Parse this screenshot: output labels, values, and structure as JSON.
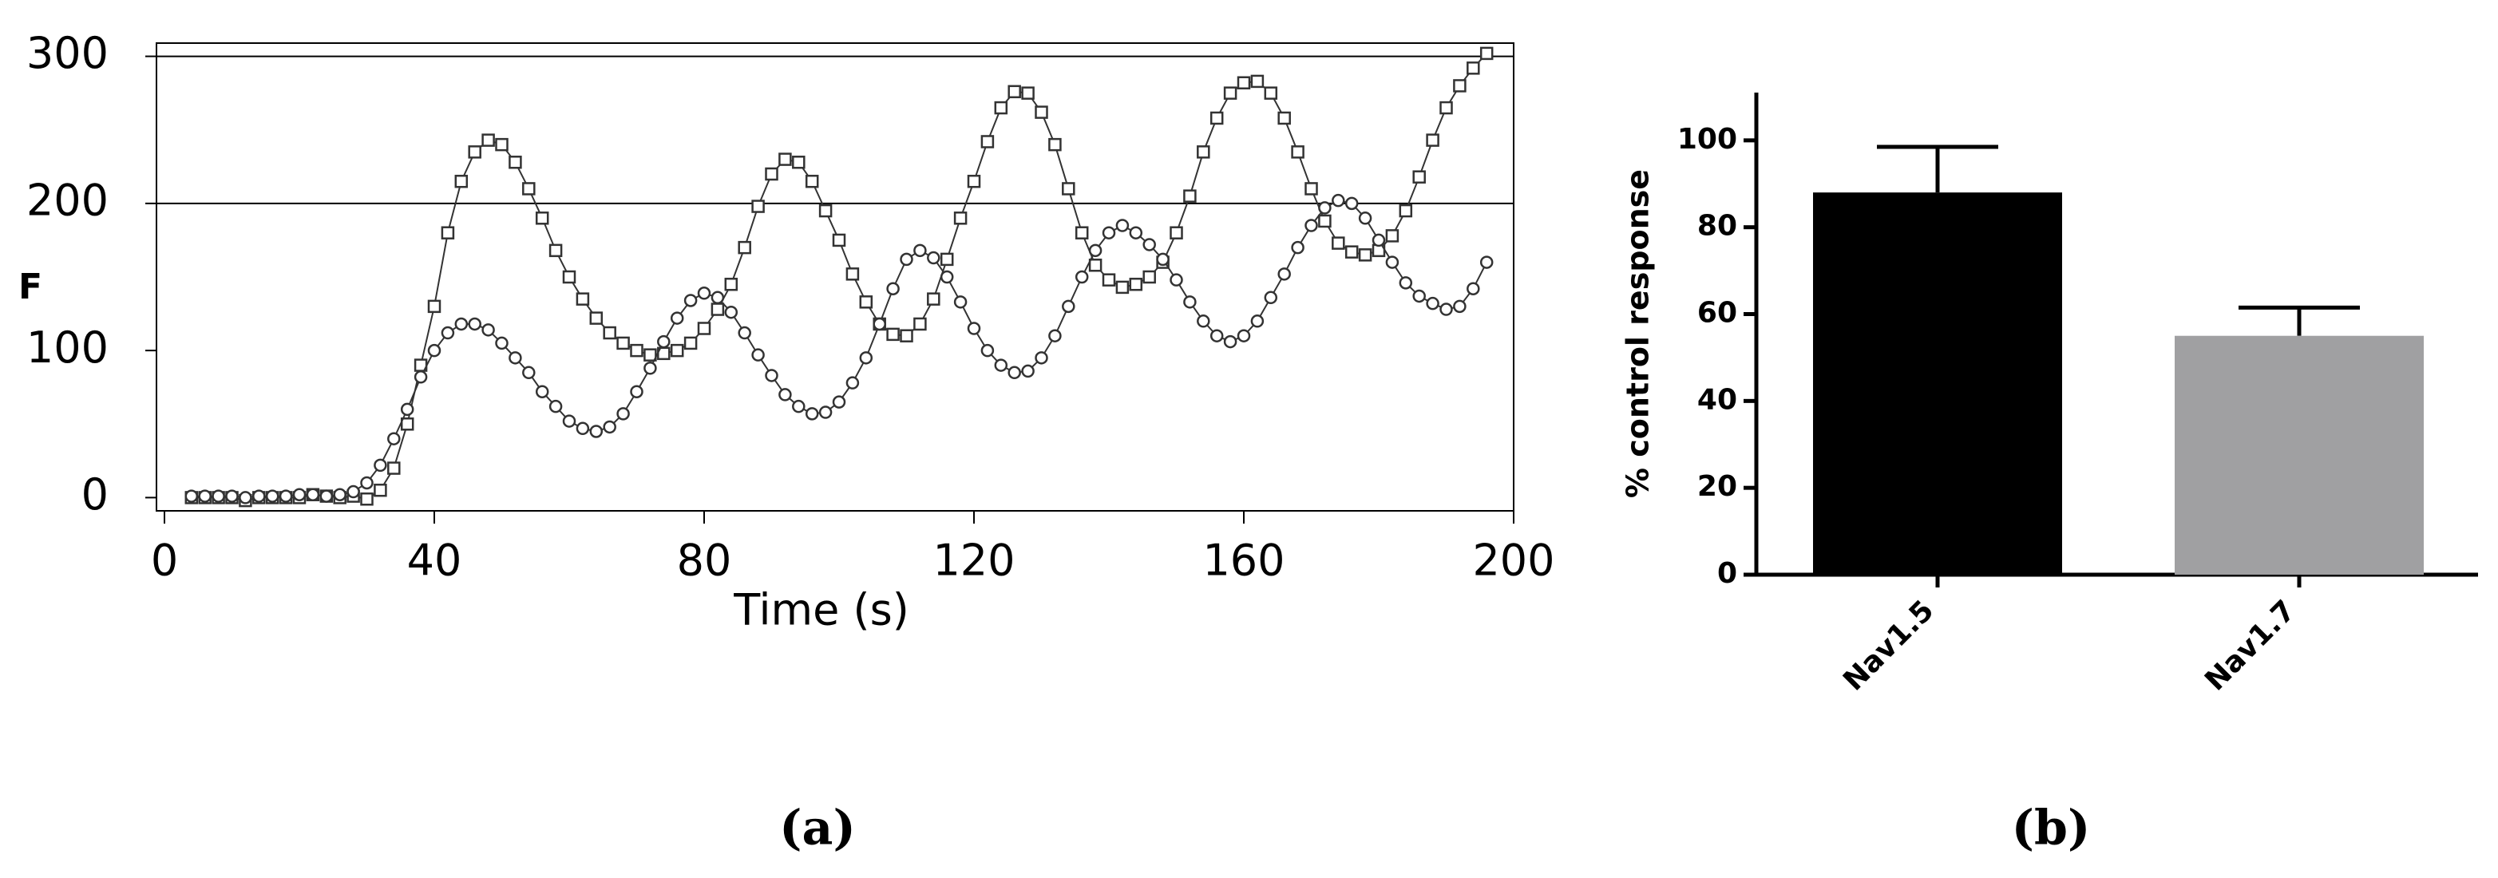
{
  "chart_data": [
    {
      "type": "line",
      "ylabel": "F",
      "xlabel": "Time (s)",
      "caption": "(a)",
      "xlim": [
        0,
        200
      ],
      "ylim": [
        -9,
        309
      ],
      "xticks": [
        0,
        40,
        80,
        120,
        160,
        200
      ],
      "yticks": [
        0,
        100,
        200,
        300
      ],
      "hlines": [
        200,
        300
      ],
      "x": [
        4,
        6,
        8,
        10,
        12,
        14,
        16,
        18,
        20,
        22,
        24,
        26,
        28,
        30,
        32,
        34,
        36,
        38,
        40,
        42,
        44,
        46,
        48,
        50,
        52,
        54,
        56,
        58,
        60,
        62,
        64,
        66,
        68,
        70,
        72,
        74,
        76,
        78,
        80,
        82,
        84,
        86,
        88,
        90,
        92,
        94,
        96,
        98,
        100,
        102,
        104,
        106,
        108,
        110,
        112,
        114,
        116,
        118,
        120,
        122,
        124,
        126,
        128,
        130,
        132,
        134,
        136,
        138,
        140,
        142,
        144,
        146,
        148,
        150,
        152,
        154,
        156,
        158,
        160,
        162,
        164,
        166,
        168,
        170,
        172,
        174,
        176,
        178,
        180,
        182,
        184,
        186,
        188,
        190,
        192,
        194,
        196
      ],
      "series": [
        {
          "color": "#333333",
          "marker": "square",
          "values": [
            0,
            0,
            0,
            0,
            -2,
            0,
            0,
            0,
            0,
            2,
            1,
            0,
            1,
            -1,
            5,
            20,
            50,
            90,
            130,
            180,
            215,
            235,
            243,
            240,
            228,
            210,
            190,
            168,
            150,
            135,
            122,
            112,
            105,
            100,
            97,
            98,
            100,
            105,
            115,
            128,
            145,
            170,
            198,
            220,
            230,
            228,
            215,
            195,
            175,
            152,
            133,
            118,
            111,
            110,
            118,
            135,
            162,
            190,
            215,
            242,
            265,
            276,
            275,
            262,
            240,
            210,
            180,
            158,
            148,
            143,
            145,
            150,
            160,
            180,
            205,
            235,
            258,
            275,
            282,
            283,
            275,
            258,
            235,
            210,
            188,
            173,
            167,
            165,
            168,
            178,
            195,
            218,
            243,
            265,
            280,
            292,
            302
          ]
        },
        {
          "color": "#333333",
          "marker": "circle",
          "values": [
            1,
            1,
            1,
            1,
            0,
            1,
            1,
            1,
            2,
            2,
            1,
            2,
            4,
            10,
            22,
            40,
            60,
            82,
            100,
            112,
            118,
            118,
            114,
            105,
            95,
            85,
            72,
            62,
            52,
            47,
            45,
            48,
            57,
            72,
            88,
            106,
            122,
            134,
            139,
            136,
            126,
            112,
            97,
            83,
            70,
            62,
            57,
            58,
            65,
            78,
            95,
            118,
            142,
            162,
            168,
            163,
            150,
            133,
            115,
            100,
            90,
            85,
            86,
            95,
            110,
            130,
            150,
            168,
            180,
            185,
            180,
            172,
            162,
            148,
            133,
            120,
            110,
            106,
            110,
            120,
            136,
            152,
            170,
            185,
            197,
            202,
            200,
            190,
            175,
            160,
            146,
            137,
            132,
            128,
            130,
            142,
            160
          ]
        }
      ]
    },
    {
      "type": "bar",
      "ylabel": "% control response",
      "caption": "(b)",
      "categories": [
        "Nav1.5",
        "Nav1.7"
      ],
      "values": [
        88,
        55
      ],
      "errors": [
        10.5,
        6.5
      ],
      "colors": [
        "#000000",
        "#a0a0a2"
      ],
      "ylim": [
        0,
        111
      ],
      "yticks": [
        0,
        20,
        40,
        60,
        80,
        100
      ]
    }
  ]
}
